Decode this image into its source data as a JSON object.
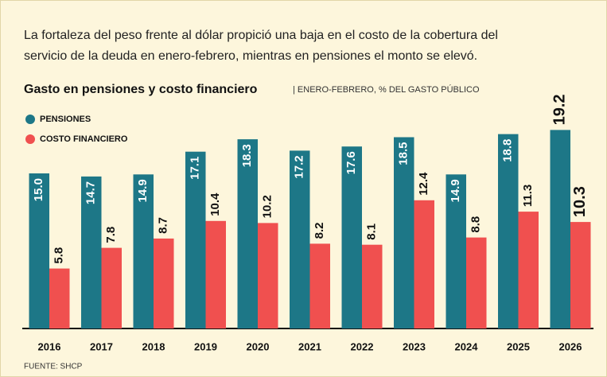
{
  "chart_data": {
    "type": "bar",
    "intro": [
      "La fortaleza del peso frente al dólar propició una baja en el costo de la cobertura del",
      "servicio de la deuda en enero-febrero, mientras en pensiones el monto se elevó."
    ],
    "title": "Gasto en pensiones y costo financiero",
    "subtitle": "| ENERO-FEBRERO, % DEL GASTO PÚBLICO",
    "categories": [
      "2016",
      "2017",
      "2018",
      "2019",
      "2020",
      "2021",
      "2022",
      "2023",
      "2024",
      "2025",
      "2026"
    ],
    "series": [
      {
        "name": "PENSIONES",
        "color": "#1d7787",
        "values": [
          15.0,
          14.7,
          14.9,
          17.1,
          18.3,
          17.2,
          17.6,
          18.5,
          14.9,
          18.8,
          19.2
        ],
        "value_labels": [
          "15.0",
          "14.7",
          "14.9",
          "17.1",
          "18.3",
          "17.2",
          "17.6",
          "18.5",
          "14.9",
          "18.8",
          "19.2"
        ]
      },
      {
        "name": "COSTO FINANCIERO",
        "color": "#f0504f",
        "values": [
          5.8,
          7.8,
          8.7,
          10.4,
          10.2,
          8.2,
          8.1,
          12.4,
          8.8,
          11.3,
          10.3
        ],
        "value_labels": [
          "5.8",
          "7.8",
          "8.7",
          "10.4",
          "10.2",
          "8.2",
          "8.1",
          "12.4",
          "8.8",
          "11.3",
          "10.3"
        ]
      }
    ],
    "source": "FUENTE: SHCP"
  }
}
